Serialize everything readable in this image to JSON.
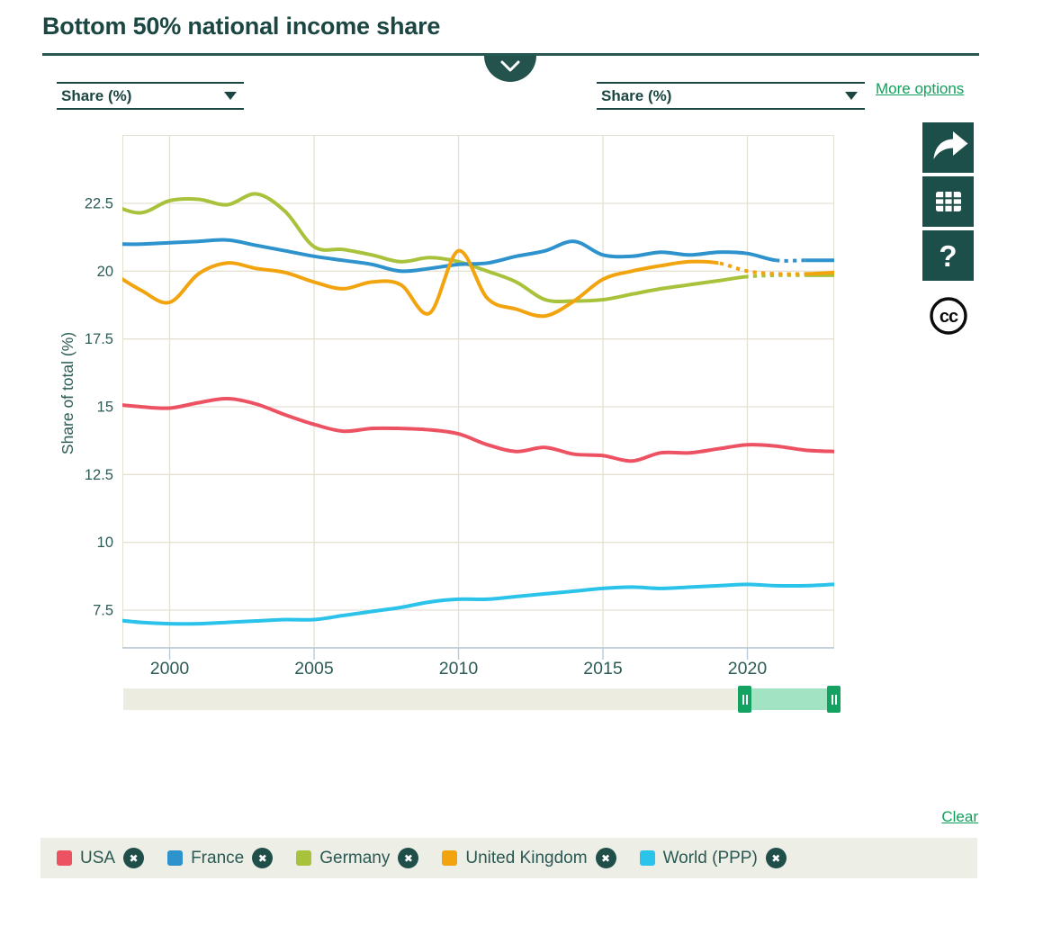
{
  "header": {
    "title": "Bottom 50% national income share",
    "collapse_button": {
      "icon": "chevron-down"
    }
  },
  "controls": {
    "unit_selector_left": {
      "value": "Share (%)"
    },
    "unit_selector_right": {
      "value": "Share (%)"
    },
    "more_options_label": "More options",
    "clear_label": "Clear"
  },
  "toolbar": {
    "buttons": [
      {
        "icon": "share-arrow"
      },
      {
        "icon": "data-table"
      },
      {
        "icon": "question-mark",
        "glyph": "?"
      },
      {
        "icon": "creative-commons",
        "glyph": "cc"
      }
    ]
  },
  "chart_data": {
    "type": "line",
    "title": "Bottom 50% national income share",
    "xlabel": "",
    "ylabel": "Share of total (%)",
    "x_ticks": [
      2000,
      2005,
      2010,
      2015,
      2020
    ],
    "y_ticks": [
      7.5,
      10,
      12.5,
      15,
      17.5,
      20,
      22.5
    ],
    "xlim": [
      1998.35,
      2023
    ],
    "ylim": [
      6.1,
      25.0
    ],
    "grid": true,
    "legend_position": "bottom",
    "years": [
      1998,
      1999,
      2000,
      2001,
      2002,
      2003,
      2004,
      2005,
      2006,
      2007,
      2008,
      2009,
      2010,
      2011,
      2012,
      2013,
      2014,
      2015,
      2016,
      2017,
      2018,
      2019,
      2020,
      2021,
      2022,
      2023
    ],
    "series": [
      {
        "name": "Germany",
        "color": "#a9c23c",
        "values": [
          22.45,
          22.15,
          22.6,
          22.65,
          22.45,
          22.85,
          22.2,
          20.9,
          20.8,
          20.6,
          20.35,
          20.5,
          20.35,
          20.0,
          19.6,
          18.95,
          18.9,
          18.95,
          19.15,
          19.35,
          19.5,
          19.65,
          19.8,
          19.85,
          19.85,
          19.85
        ],
        "dotted_range": [
          2020,
          2022
        ]
      },
      {
        "name": "France",
        "color": "#2e92cc",
        "values": [
          21.0,
          21.0,
          21.05,
          21.1,
          21.15,
          20.95,
          20.75,
          20.55,
          20.4,
          20.25,
          20.0,
          20.1,
          20.25,
          20.3,
          20.55,
          20.75,
          21.1,
          20.6,
          20.55,
          20.7,
          20.6,
          20.7,
          20.65,
          20.4,
          20.4,
          20.4
        ],
        "dotted_range": [
          2021,
          2022
        ]
      },
      {
        "name": "United Kingdom",
        "color": "#f2a40e",
        "values": [
          19.95,
          19.3,
          18.85,
          19.9,
          20.3,
          20.1,
          19.95,
          19.6,
          19.35,
          19.6,
          19.5,
          18.45,
          20.75,
          19.0,
          18.6,
          18.35,
          18.9,
          19.7,
          20.0,
          20.2,
          20.35,
          20.3,
          20.0,
          19.9,
          19.9,
          19.95
        ],
        "dotted_range": [
          2019,
          2022
        ]
      },
      {
        "name": "USA",
        "color": "#ed5263",
        "values": [
          15.1,
          15.0,
          14.95,
          15.15,
          15.3,
          15.1,
          14.7,
          14.35,
          14.1,
          14.2,
          14.2,
          14.15,
          14.0,
          13.6,
          13.35,
          13.5,
          13.25,
          13.2,
          13.0,
          13.3,
          13.3,
          13.45,
          13.6,
          13.55,
          13.4,
          13.35
        ],
        "dotted_range": null
      },
      {
        "name": "World (PPP)",
        "color": "#2cc3ea",
        "values": [
          7.15,
          7.05,
          7.0,
          7.0,
          7.05,
          7.1,
          7.15,
          7.15,
          7.3,
          7.45,
          7.6,
          7.8,
          7.9,
          7.9,
          8.0,
          8.1,
          8.2,
          8.3,
          8.35,
          8.3,
          8.35,
          8.4,
          8.45,
          8.4,
          8.4,
          8.45
        ],
        "dotted_range": null
      }
    ]
  },
  "legend": {
    "items": [
      {
        "label": "USA",
        "color": "#ed5263"
      },
      {
        "label": "France",
        "color": "#2e92cc"
      },
      {
        "label": "Germany",
        "color": "#a9c23c"
      },
      {
        "label": "United Kingdom",
        "color": "#f2a40e"
      },
      {
        "label": "World (PPP)",
        "color": "#2cc3ea"
      }
    ],
    "remove_icon": "x-circle"
  },
  "timeline": {
    "range_percent": [
      86.2,
      100
    ],
    "handle_icon": "drag-handle"
  },
  "colors": {
    "accent_teal": "#1d4f4a",
    "link_green": "#10a05c",
    "grid": "#e4e1d3",
    "axis_line": "#b9cad8",
    "legend_bg": "#edeee6",
    "slider_track": "#edece1",
    "slider_range": "#a1e3c2",
    "slider_handle": "#14a263"
  }
}
